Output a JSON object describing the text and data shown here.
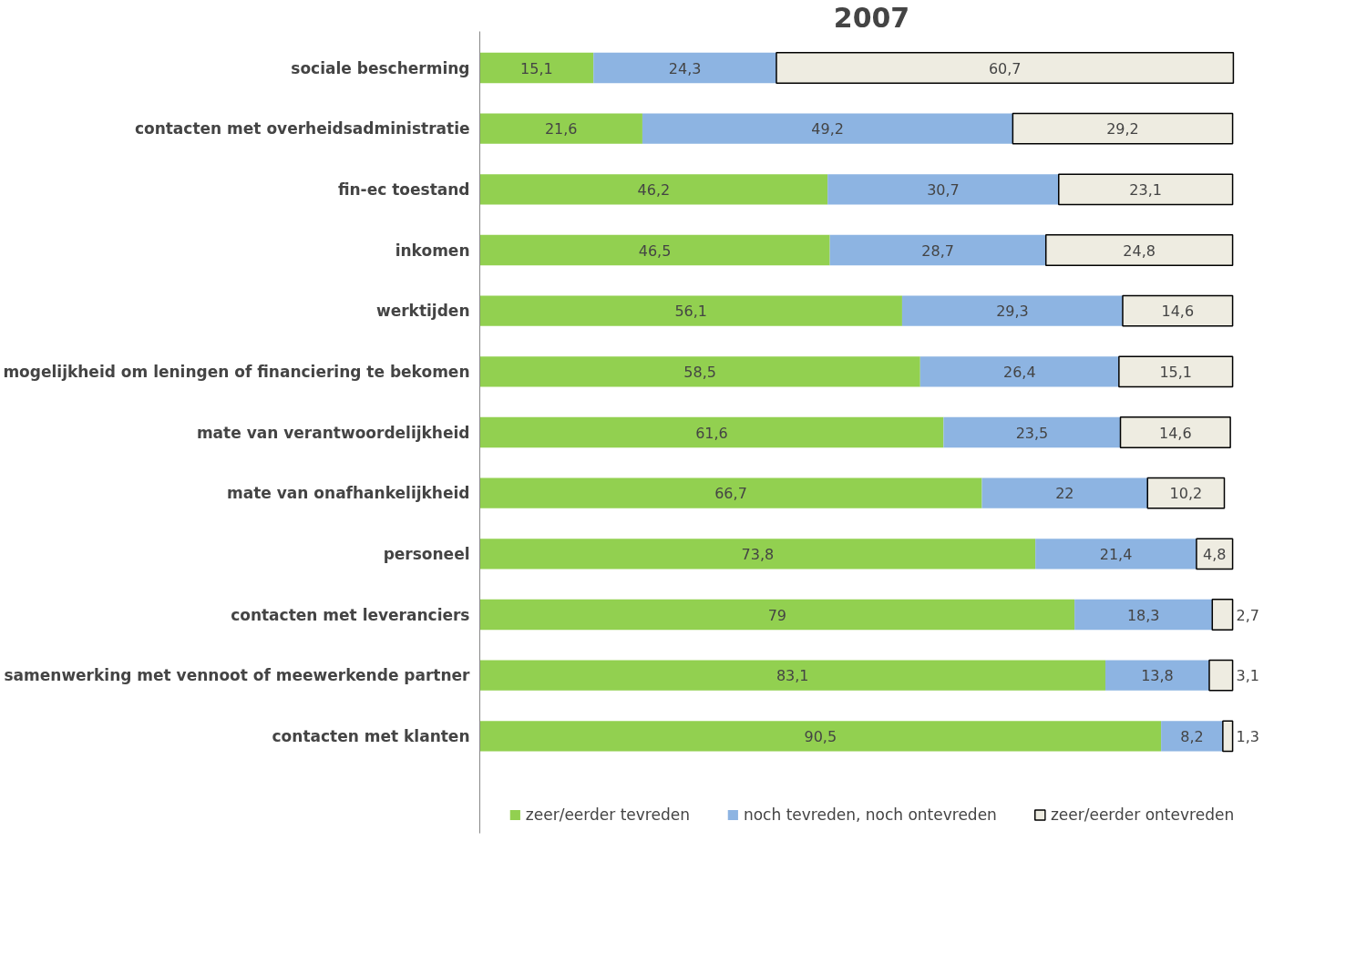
{
  "chart_data": {
    "type": "bar",
    "orientation": "horizontal",
    "stacked": true,
    "title": "2007",
    "categories": [
      "sociale bescherming",
      "contacten met overheidsadministratie",
      "fin-ec toestand",
      "inkomen",
      "werktijden",
      "mogelijkheid om leningen of financiering te bekomen",
      "mate van verantwoordelijkheid",
      "mate van onafhankelijkheid",
      "personeel",
      "contacten met leveranciers",
      "samenwerking met vennoot of meewerkende partner",
      "contacten met klanten"
    ],
    "series": [
      {
        "name": "zeer/eerder tevreden",
        "color": "#92d050",
        "values": [
          15.1,
          21.6,
          46.2,
          46.5,
          56.1,
          58.5,
          61.6,
          66.7,
          73.8,
          79,
          83.1,
          90.5
        ],
        "value_labels": [
          "15,1",
          "21,6",
          "46,2",
          "46,5",
          "56,1",
          "58,5",
          "61,6",
          "66,7",
          "73,8",
          "79",
          "83,1",
          "90,5"
        ]
      },
      {
        "name": "noch tevreden, noch ontevreden",
        "color": "#8db4e2",
        "values": [
          24.3,
          49.2,
          30.7,
          28.7,
          29.3,
          26.4,
          23.5,
          22,
          21.4,
          18.3,
          13.8,
          8.2
        ],
        "value_labels": [
          "24,3",
          "49,2",
          "30,7",
          "28,7",
          "29,3",
          "26,4",
          "23,5",
          "22",
          "21,4",
          "18,3",
          "13,8",
          "8,2"
        ]
      },
      {
        "name": "zeer/eerder ontevreden",
        "color": "#eeece1",
        "values": [
          60.7,
          29.2,
          23.1,
          24.8,
          14.6,
          15.1,
          14.6,
          10.2,
          4.8,
          2.7,
          3.1,
          1.3
        ],
        "value_labels": [
          "60,7",
          "29,2",
          "23,1",
          "24,8",
          "14,6",
          "15,1",
          "14,6",
          "10,2",
          "4,8",
          "2,7",
          "3,1",
          "1,3"
        ]
      }
    ],
    "tick_labels": "y",
    "grid": false,
    "legend": "bottom"
  }
}
